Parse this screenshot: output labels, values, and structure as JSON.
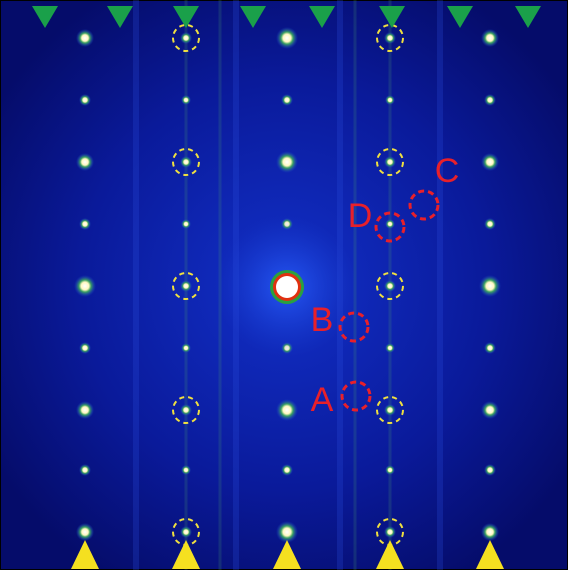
{
  "annotations": [
    {
      "label": "A"
    },
    {
      "label": "B"
    },
    {
      "label": "C"
    },
    {
      "label": "D"
    }
  ]
}
